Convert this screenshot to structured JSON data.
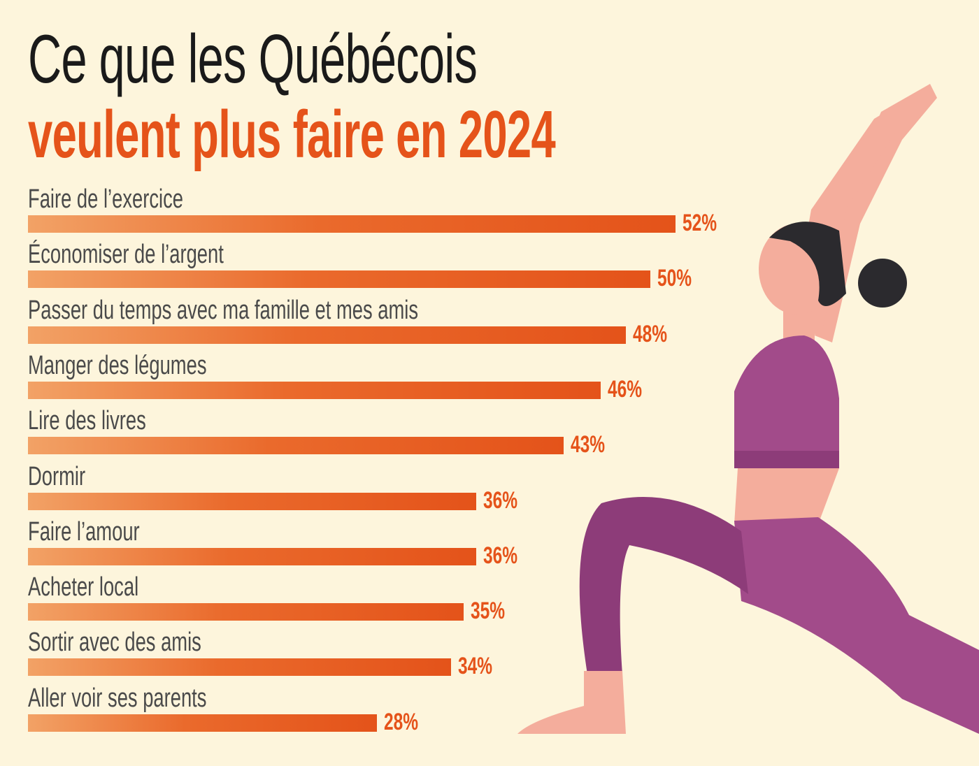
{
  "title": {
    "line1": "Ce que les Québécois",
    "line2": "veulent plus faire en 2024"
  },
  "colors": {
    "background": "#fdf5dc",
    "accent": "#e5531a",
    "text": "#4a4a4a"
  },
  "chart_data": {
    "type": "bar",
    "orientation": "horizontal",
    "title": "Ce que les Québécois veulent plus faire en 2024",
    "categories": [
      "Faire de l’exercice",
      "Économiser de l’argent",
      "Passer du temps avec ma famille et mes amis",
      "Manger des légumes",
      "Lire des livres",
      "Dormir",
      "Faire l’amour",
      "Acheter local",
      "Sortir avec des amis",
      "Aller voir ses parents"
    ],
    "values": [
      52,
      50,
      48,
      46,
      43,
      36,
      36,
      35,
      34,
      28
    ],
    "labels": [
      "52%",
      "50%",
      "48%",
      "46%",
      "43%",
      "36%",
      "36%",
      "35%",
      "34%",
      "28%"
    ],
    "unit": "%",
    "xlim": [
      0,
      52
    ],
    "grid": false
  }
}
